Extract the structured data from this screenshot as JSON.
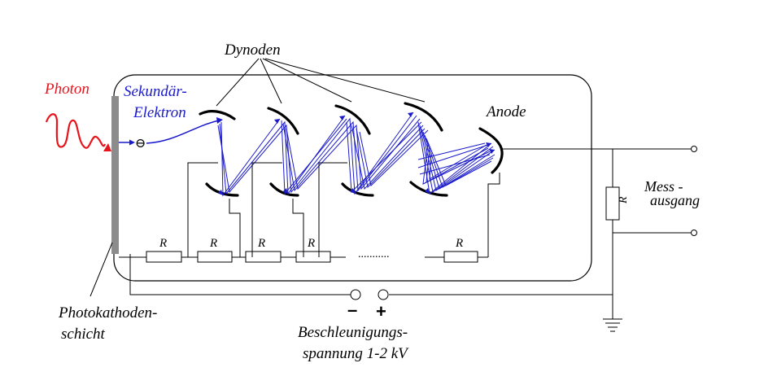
{
  "labels": {
    "photon": "Photon",
    "sekundaer_line1": "Sekundär-",
    "sekundaer_line2": "Elektron",
    "dynoden": "Dynoden",
    "anode": "Anode",
    "mess_line1": "Mess -",
    "mess_line2": "ausgang",
    "photokathoden_line1": "Photokathoden-",
    "photokathoden_line2": "schicht",
    "beschleunigung_line1": "Beschleunigungs-",
    "beschleunigung_line2": "spannung 1-2 kV",
    "minus": "–",
    "plus": "+",
    "electron_symbol": "⊖",
    "ellipsis": "...........",
    "resistor": "R"
  },
  "colors": {
    "photon": "#e8141c",
    "electron": "#1a1acc",
    "outline": "#000000",
    "cathode": "#8c8c8c"
  }
}
